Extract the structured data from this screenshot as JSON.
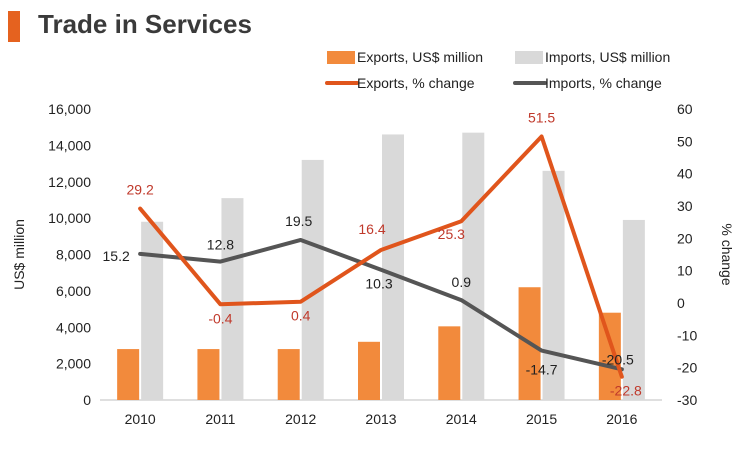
{
  "page": {
    "title": "Trade in Services"
  },
  "colors": {
    "accent": "#e5621f",
    "exports_bar": "#f28a3c",
    "imports_bar": "#d9d9d9",
    "exports_line": "#e0551c",
    "imports_line": "#555555",
    "export_label": "#c0392b",
    "text": "#222222",
    "axis": "#555555"
  },
  "chart_data": {
    "type": "bar",
    "categories": [
      "2010",
      "2011",
      "2012",
      "2013",
      "2014",
      "2015",
      "2016"
    ],
    "series": [
      {
        "name": "Exports, US$ million",
        "type": "bar",
        "axis": "left",
        "values": [
          2800,
          2800,
          2800,
          3200,
          4050,
          6200,
          4800
        ]
      },
      {
        "name": "Imports, US$ million",
        "type": "bar",
        "axis": "left",
        "values": [
          9800,
          11100,
          13200,
          14600,
          14700,
          12600,
          9900
        ]
      },
      {
        "name": "Exports, % change",
        "type": "line",
        "axis": "right",
        "values": [
          29.2,
          -0.4,
          0.4,
          16.4,
          25.3,
          51.5,
          -22.8
        ],
        "labels": [
          "29.2",
          "-0.4",
          "0.4",
          "16.4",
          "25.3",
          "51.5",
          "-22.8"
        ]
      },
      {
        "name": "Imports, % change",
        "type": "line",
        "axis": "right",
        "values": [
          15.2,
          12.8,
          19.5,
          10.3,
          0.9,
          -14.7,
          -20.5
        ],
        "labels": [
          "15.2",
          "12.8",
          "19.5",
          "10.3",
          "0.9",
          "-14.7",
          "-20.5"
        ]
      }
    ],
    "ylabel": "US$ million",
    "y2label": "% change",
    "ylim": [
      0,
      16000
    ],
    "y2lim": [
      -30,
      60
    ],
    "yticks": [
      "0",
      "2,000",
      "4,000",
      "6,000",
      "8,000",
      "10,000",
      "12,000",
      "14,000",
      "16,000"
    ],
    "y2ticks": [
      "-30",
      "-20",
      "-10",
      "0",
      "10",
      "20",
      "30",
      "40",
      "50",
      "60"
    ],
    "legend": "top",
    "grid": false
  }
}
